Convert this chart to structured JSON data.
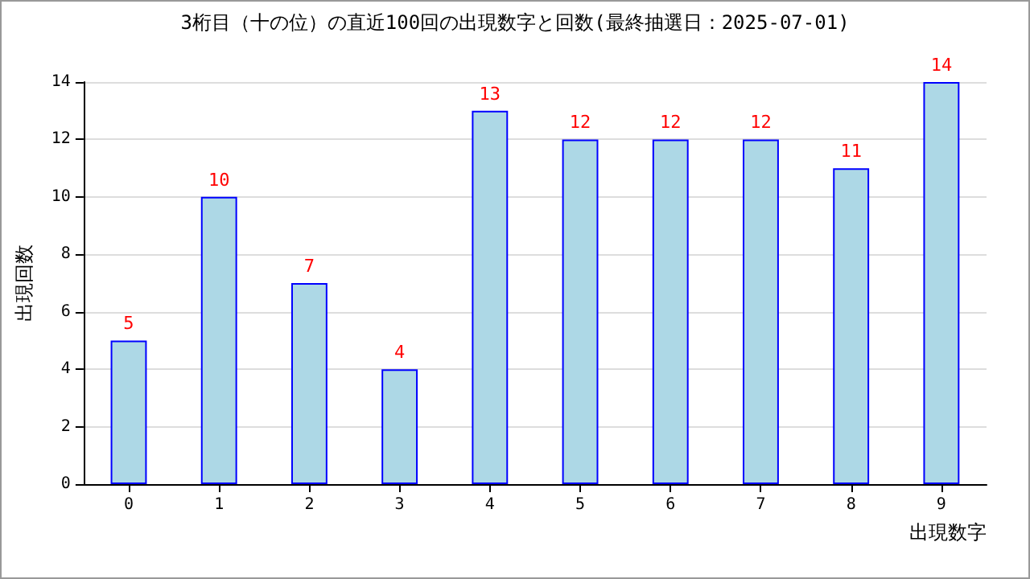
{
  "chart_data": {
    "type": "bar",
    "title": "3桁目（十の位）の直近100回の出現数字と回数(最終抽選日：2025-07-01)",
    "xlabel": "出現数字",
    "ylabel": "出現回数",
    "categories": [
      "0",
      "1",
      "2",
      "3",
      "4",
      "5",
      "6",
      "7",
      "8",
      "9"
    ],
    "values": [
      5,
      10,
      7,
      4,
      13,
      12,
      12,
      12,
      11,
      14
    ],
    "color": "#add8e6",
    "data_labels": true,
    "ylim": [
      0,
      14
    ],
    "yticks": [
      0,
      2,
      4,
      6,
      8,
      10,
      12,
      14
    ],
    "grid": "y"
  }
}
